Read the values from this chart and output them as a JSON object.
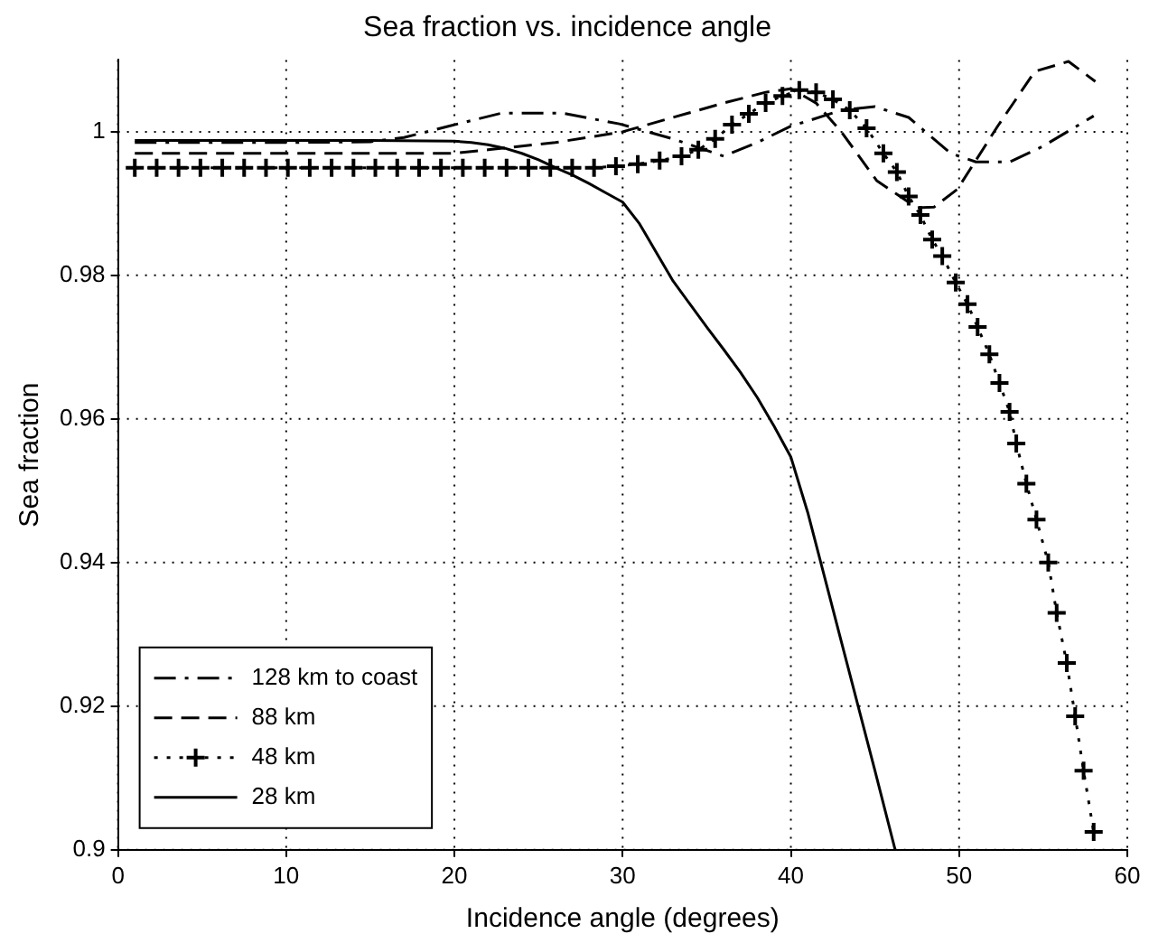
{
  "chart_data": {
    "type": "line",
    "title": "Sea fraction vs. incidence angle",
    "xlabel": "Incidence angle (degrees)",
    "ylabel": "Sea fraction",
    "xlim": [
      0,
      60
    ],
    "xticks": [
      0,
      10,
      20,
      30,
      40,
      50,
      60
    ],
    "ylim": [
      0.9,
      1.01
    ],
    "yticks": [
      0.9,
      0.92,
      0.94,
      0.96,
      0.98,
      1
    ],
    "grid": true,
    "legend": "bottom left",
    "series": [
      {
        "name": "128 km to coast",
        "color": "#000000",
        "line_style": "dashdot",
        "marker": "none",
        "x": [
          1,
          5,
          10,
          15,
          17,
          19.7,
          22.8,
          26.4,
          29.8,
          31.5,
          33,
          36,
          38,
          40,
          41,
          43,
          45,
          47,
          49.5,
          51,
          53,
          55,
          58
        ],
        "values": [
          0.9985,
          0.9985,
          0.9985,
          0.9986,
          0.9992,
          1.0008,
          1.0026,
          1.0026,
          1.0011,
          1.0,
          0.999,
          0.9966,
          0.9985,
          1.0008,
          1.0015,
          1.003,
          1.0035,
          1.002,
          0.997,
          0.9958,
          0.9958,
          0.998,
          1.0022
        ]
      },
      {
        "name": "88 km",
        "color": "#000000",
        "line_style": "dashed",
        "marker": "none",
        "x": [
          1,
          10,
          20,
          22,
          26,
          30,
          33,
          36,
          38.5,
          40,
          41.5,
          43,
          45.1,
          47.5,
          48.5,
          49.9,
          52.3,
          54.5,
          56.5,
          58.1
        ],
        "values": [
          0.997,
          0.997,
          0.997,
          0.9975,
          0.9985,
          1.0,
          1.002,
          1.004,
          1.0055,
          1.006,
          1.004,
          1.0,
          0.9932,
          0.9894,
          0.9895,
          0.992,
          1.0008,
          1.0084,
          1.0098,
          1.007
        ]
      },
      {
        "name": "48 km",
        "color": "#000000",
        "line_style": "dotted",
        "marker": "cross",
        "x": [
          1,
          2.3,
          3.6,
          4.9,
          6.2,
          7.5,
          8.8,
          10.1,
          11.4,
          12.7,
          14,
          15.3,
          16.6,
          17.9,
          19.2,
          20.5,
          21.8,
          23.1,
          24.4,
          25.7,
          27,
          28.3,
          29.6,
          30.9,
          32.2,
          33.5,
          34.5,
          35.5,
          36.5,
          37.5,
          38.5,
          39.5,
          40.5,
          41.5,
          42.5,
          43.5,
          44.5,
          45.5,
          46.3,
          47,
          47.7,
          48.4,
          49,
          49.8,
          50.5,
          51.1,
          51.8,
          52.4,
          53,
          53.4,
          54,
          54.6,
          55.3,
          55.8,
          56.4,
          56.9,
          57.4,
          58
        ],
        "values": [
          0.995,
          0.995,
          0.995,
          0.995,
          0.995,
          0.995,
          0.995,
          0.995,
          0.995,
          0.995,
          0.995,
          0.995,
          0.995,
          0.995,
          0.995,
          0.995,
          0.995,
          0.995,
          0.995,
          0.995,
          0.995,
          0.995,
          0.9952,
          0.9955,
          0.996,
          0.9966,
          0.9975,
          0.999,
          1.001,
          1.0025,
          1.004,
          1.005,
          1.0058,
          1.0055,
          1.0045,
          1.003,
          1.0005,
          0.997,
          0.9944,
          0.991,
          0.9884,
          0.985,
          0.9827,
          0.979,
          0.976,
          0.9728,
          0.969,
          0.965,
          0.961,
          0.9566,
          0.951,
          0.946,
          0.94,
          0.933,
          0.926,
          0.9186,
          0.911,
          0.9025
        ]
      },
      {
        "name": "28 km",
        "color": "#000000",
        "line_style": "solid",
        "marker": "none",
        "x": [
          1,
          5,
          10,
          15,
          20,
          21,
          22,
          23,
          24,
          25,
          26,
          27,
          28,
          29,
          30,
          31,
          32,
          33,
          34,
          35,
          36,
          37,
          38,
          39,
          40,
          41,
          42,
          43,
          44,
          45,
          46.2
        ],
        "values": [
          0.9988,
          0.9988,
          0.9988,
          0.9988,
          0.9987,
          0.9985,
          0.9982,
          0.9977,
          0.997,
          0.9961,
          0.995,
          0.994,
          0.9928,
          0.9915,
          0.9902,
          0.9872,
          0.9832,
          0.9792,
          0.976,
          0.9728,
          0.9697,
          0.9665,
          0.963,
          0.959,
          0.9547,
          0.947,
          0.938,
          0.929,
          0.92,
          0.911,
          0.9
        ]
      }
    ]
  }
}
